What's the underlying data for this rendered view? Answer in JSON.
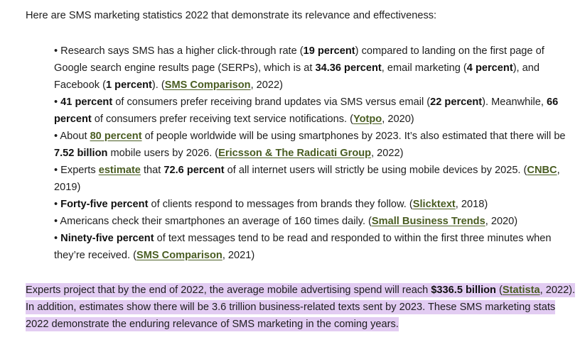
{
  "intro": "Here are SMS marketing statistics 2022 that demonstrate its relevance and effectiveness:",
  "bullets": [
    {
      "b1_t1": "• Research says SMS has a higher click-through rate (",
      "b1_s1": "19 percent",
      "b1_t2": ") compared to landing on the first page of Google search engine results page (SERPs), which is at ",
      "b1_s2": "34.36 percent",
      "b1_t3": ", email marketing (",
      "b1_s3": "4 percent",
      "b1_t4": "), and Facebook (",
      "b1_s4": "1 percent",
      "b1_t5": "). (",
      "b1_l1": "SMS Comparison",
      "b1_t6": ", 2022)"
    }
  ],
  "b2": {
    "t0": "• ",
    "s1": "41 percent",
    "t1": " of consumers prefer receiving brand updates via SMS versus email (",
    "s2": "22 percent",
    "t2": "). Meanwhile, ",
    "s3": "66 percent",
    "t3": " of consumers prefer receiving text service notifications. (",
    "l1": "Yotpo",
    "t4": ", 2020)"
  },
  "b3": {
    "t0": "• About ",
    "l1": "80 percent",
    "t1": " of people worldwide will be using smartphones by 2023. It’s also estimated that there will be ",
    "s1": "7.52 billion",
    "t2": " mobile users by 2026. (",
    "l2": "Ericsson & The Radicati Group",
    "t3": ", 2022)"
  },
  "b4": {
    "t0": "• Experts ",
    "l1": "estimate",
    "t1": " that ",
    "s1": "72.6 percent",
    "t2": " of all internet users will strictly be using mobile devices by 2025. (",
    "l2": "CNBC",
    "t3": ", 2019)"
  },
  "b5": {
    "t0": "• ",
    "s1": "Forty-five percent",
    "t1": " of clients respond to messages from brands they follow. (",
    "l1": "Slicktext",
    "t2": ", 2018)"
  },
  "b6": {
    "t0": "• Americans check their smartphones an average of 160 times daily. (",
    "l1": "Small Business Trends",
    "t1": ", 2020)"
  },
  "b7": {
    "t0": "• ",
    "s1": "Ninety-five percent",
    "t1": " of text messages tend to be read and responded to within the first three minutes when they’re received. (",
    "l1": "SMS Comparison",
    "t2": ", 2021)"
  },
  "closing": {
    "t0": "Experts project that by the end of 2022, the average mobile advertising spend will reach ",
    "s1": "$336.5 billion",
    "t1": " (",
    "l1": "Statista",
    "t2": ", 2022). In addition, estimates show there will be 3.6 trillion business-related texts sent by 2023. These SMS marketing stats 2022 demonstrate the enduring relevance of SMS marketing in the coming years."
  },
  "colors": {
    "link": "#4a5d23",
    "highlight": "#e2ccf2",
    "text": "#1d1d1d"
  }
}
